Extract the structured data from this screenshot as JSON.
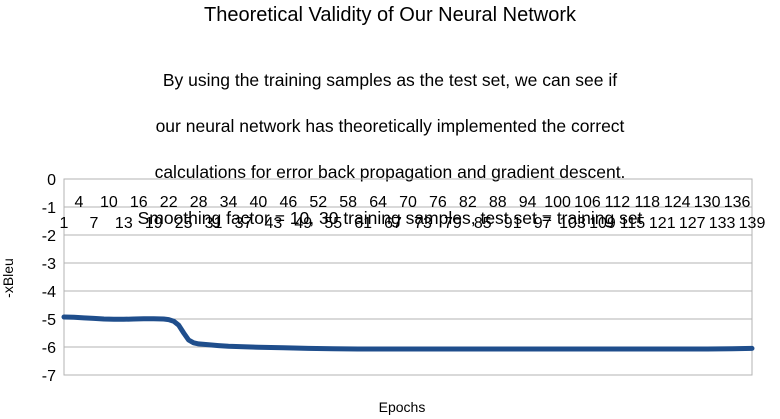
{
  "chart_data": {
    "type": "line",
    "title": "Theoretical Validity of Our Neural Network",
    "subtitle_lines": [
      "By using the training samples as the test set, we can see if",
      "our neural network has theoretically implemented the correct",
      "calculations for error back propagation and gradient descent.",
      "Smoothing factor = 10, 30 training samples, test set = training set"
    ],
    "xlabel": "Epochs",
    "ylabel": "-xBleu",
    "ylim": [
      -7,
      0
    ],
    "yticks": [
      0,
      -1,
      -2,
      -3,
      -4,
      -5,
      -6,
      -7
    ],
    "xlim": [
      1,
      139
    ],
    "xticks_upper": [
      4,
      10,
      16,
      22,
      28,
      34,
      40,
      46,
      52,
      58,
      64,
      70,
      76,
      82,
      88,
      94,
      100,
      106,
      112,
      118,
      124,
      130,
      136
    ],
    "xticks_lower": [
      1,
      7,
      13,
      19,
      25,
      31,
      37,
      43,
      49,
      55,
      61,
      67,
      73,
      79,
      85,
      91,
      97,
      103,
      109,
      115,
      121,
      127,
      133,
      139
    ],
    "grid": "horizontal",
    "legend": "none",
    "series_color": "#1f4e8c",
    "series": [
      {
        "x": [
          1,
          3,
          5,
          7,
          9,
          11,
          13,
          15,
          17,
          19,
          21,
          22,
          23,
          24,
          25,
          26,
          27,
          28,
          30,
          32,
          34,
          37,
          40,
          45,
          50,
          55,
          60,
          70,
          80,
          90,
          100,
          110,
          120,
          130,
          135,
          139
        ],
        "values": [
          -4.93,
          -4.94,
          -4.96,
          -4.98,
          -5.0,
          -5.01,
          -5.01,
          -5.0,
          -4.99,
          -4.99,
          -5.0,
          -5.02,
          -5.08,
          -5.22,
          -5.5,
          -5.75,
          -5.85,
          -5.89,
          -5.92,
          -5.95,
          -5.97,
          -5.99,
          -6.01,
          -6.03,
          -6.05,
          -6.06,
          -6.07,
          -6.07,
          -6.07,
          -6.07,
          -6.07,
          -6.07,
          -6.07,
          -6.07,
          -6.06,
          -6.05
        ]
      }
    ]
  }
}
